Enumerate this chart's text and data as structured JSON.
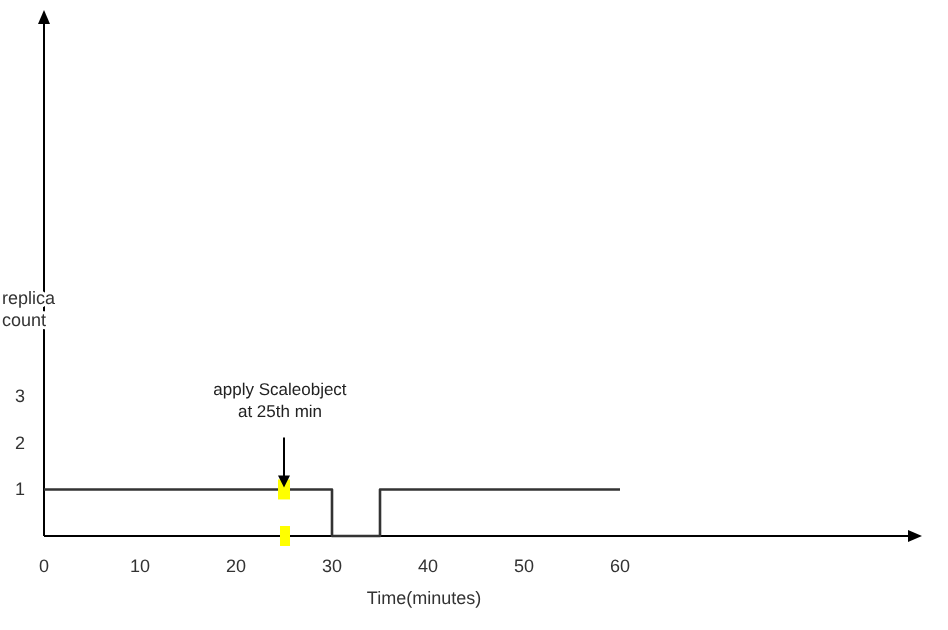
{
  "chart_data": {
    "type": "line",
    "xlabel": "Time(minutes)",
    "ylabel": "replica count",
    "x": [
      0,
      30,
      30,
      35,
      35,
      60
    ],
    "series": [
      {
        "color": "#333333",
        "values": [
          1,
          1,
          0,
          0,
          1,
          1
        ]
      }
    ],
    "xlim": [
      0,
      90
    ],
    "ylim": [
      0,
      11
    ],
    "xticks": [
      0,
      10,
      20,
      30,
      40,
      50,
      60
    ],
    "yticks": [
      1,
      2,
      3
    ],
    "annotations": [
      {
        "text": "apply Scaleobject\nat 25th min",
        "x": 25,
        "y": 1
      }
    ],
    "marker": "none",
    "line_style": "solid"
  }
}
